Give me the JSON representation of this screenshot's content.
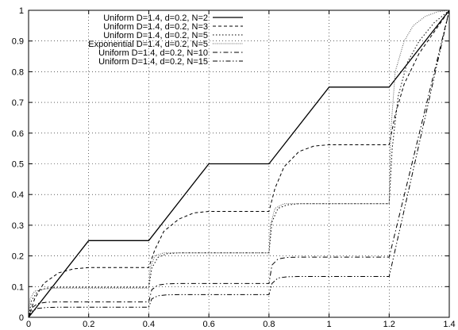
{
  "chart_data": {
    "type": "line",
    "title": "",
    "xlabel": "",
    "ylabel": "",
    "xlim": [
      0,
      1.4
    ],
    "ylim": [
      0,
      1
    ],
    "grid": true,
    "legend_position": "top-left",
    "xticks": [
      0,
      0.2,
      0.4,
      0.6,
      0.8,
      1,
      1.2,
      1.4
    ],
    "xtick_labels": [
      "0",
      "0.2",
      "0.4",
      "0.6",
      "0.8",
      "1",
      "1.2",
      "1.4"
    ],
    "yticks": [
      0,
      0.1,
      0.2,
      0.3,
      0.4,
      0.5,
      0.6,
      0.7,
      0.8,
      0.9,
      1
    ],
    "ytick_labels": [
      "0",
      "0.1",
      "0.2",
      "0.3",
      "0.4",
      "0.5",
      "0.6",
      "0.7",
      "0.8",
      "0.9",
      "1"
    ],
    "series": [
      {
        "name": "Uniform D=1.4, d=0.2, N=2",
        "style": "solid",
        "color": "#000000",
        "x": [
          0,
          0.2,
          0.4,
          0.6,
          0.8,
          1.0,
          1.2,
          1.4
        ],
        "y": [
          0,
          0.25,
          0.25,
          0.5,
          0.5,
          0.75,
          0.75,
          1.0
        ]
      },
      {
        "name": "Uniform D=1.4, d=0.2, N=3",
        "style": "dashed",
        "color": "#000000",
        "x": [
          0,
          0.02,
          0.05,
          0.1,
          0.15,
          0.2,
          0.4,
          0.42,
          0.45,
          0.5,
          0.55,
          0.6,
          0.8,
          0.82,
          0.85,
          0.9,
          0.95,
          1.0,
          1.2,
          1.22,
          1.25,
          1.3,
          1.35,
          1.4
        ],
        "y": [
          0,
          0.06,
          0.11,
          0.145,
          0.158,
          0.162,
          0.162,
          0.22,
          0.28,
          0.32,
          0.34,
          0.345,
          0.345,
          0.42,
          0.49,
          0.54,
          0.558,
          0.562,
          0.562,
          0.66,
          0.76,
          0.86,
          0.93,
          1.0
        ]
      },
      {
        "name": "Uniform D=1.4, d=0.2, N=5",
        "style": "dotted",
        "color": "#000000",
        "x": [
          0,
          0.01,
          0.03,
          0.06,
          0.1,
          0.2,
          0.4,
          0.41,
          0.43,
          0.46,
          0.5,
          0.6,
          0.8,
          0.81,
          0.83,
          0.86,
          0.9,
          1.0,
          1.2,
          1.21,
          1.23,
          1.26,
          1.3,
          1.35,
          1.4
        ],
        "y": [
          0,
          0.055,
          0.085,
          0.095,
          0.098,
          0.098,
          0.098,
          0.16,
          0.195,
          0.207,
          0.21,
          0.21,
          0.21,
          0.31,
          0.355,
          0.366,
          0.37,
          0.37,
          0.37,
          0.55,
          0.72,
          0.83,
          0.9,
          0.96,
          1.0
        ]
      },
      {
        "name": "Exponential D=1.4, d=0.2, N=5",
        "style": "fine-dotted",
        "color": "#555555",
        "x": [
          0,
          0.005,
          0.02,
          0.05,
          0.1,
          0.2,
          0.4,
          0.405,
          0.42,
          0.45,
          0.6,
          0.8,
          0.805,
          0.82,
          0.85,
          1.0,
          1.2,
          1.205,
          1.22,
          1.25,
          1.28,
          1.32,
          1.36,
          1.4
        ],
        "y": [
          0,
          0.06,
          0.085,
          0.092,
          0.095,
          0.095,
          0.095,
          0.16,
          0.2,
          0.21,
          0.21,
          0.21,
          0.3,
          0.355,
          0.37,
          0.37,
          0.37,
          0.6,
          0.8,
          0.9,
          0.95,
          0.98,
          0.995,
          1.0
        ]
      },
      {
        "name": "Uniform D=1.4, d=0.2, N=10",
        "style": "dash-dot",
        "color": "#000000",
        "x": [
          0,
          0.01,
          0.03,
          0.06,
          0.1,
          0.4,
          0.41,
          0.43,
          0.46,
          0.5,
          0.8,
          0.81,
          0.83,
          0.86,
          0.9,
          1.2,
          1.4
        ],
        "y": [
          0,
          0.03,
          0.045,
          0.049,
          0.05,
          0.05,
          0.09,
          0.105,
          0.109,
          0.11,
          0.11,
          0.17,
          0.19,
          0.195,
          0.196,
          0.196,
          1.0
        ]
      },
      {
        "name": "Uniform D=1.4, d=0.2, N=15",
        "style": "dash-dot-dot",
        "color": "#000000",
        "x": [
          0,
          0.01,
          0.03,
          0.06,
          0.1,
          0.4,
          0.41,
          0.43,
          0.46,
          0.5,
          0.8,
          0.81,
          0.83,
          0.86,
          0.9,
          1.2,
          1.4
        ],
        "y": [
          0,
          0.02,
          0.029,
          0.032,
          0.033,
          0.033,
          0.06,
          0.07,
          0.073,
          0.074,
          0.074,
          0.11,
          0.128,
          0.132,
          0.133,
          0.133,
          1.0
        ]
      }
    ]
  }
}
